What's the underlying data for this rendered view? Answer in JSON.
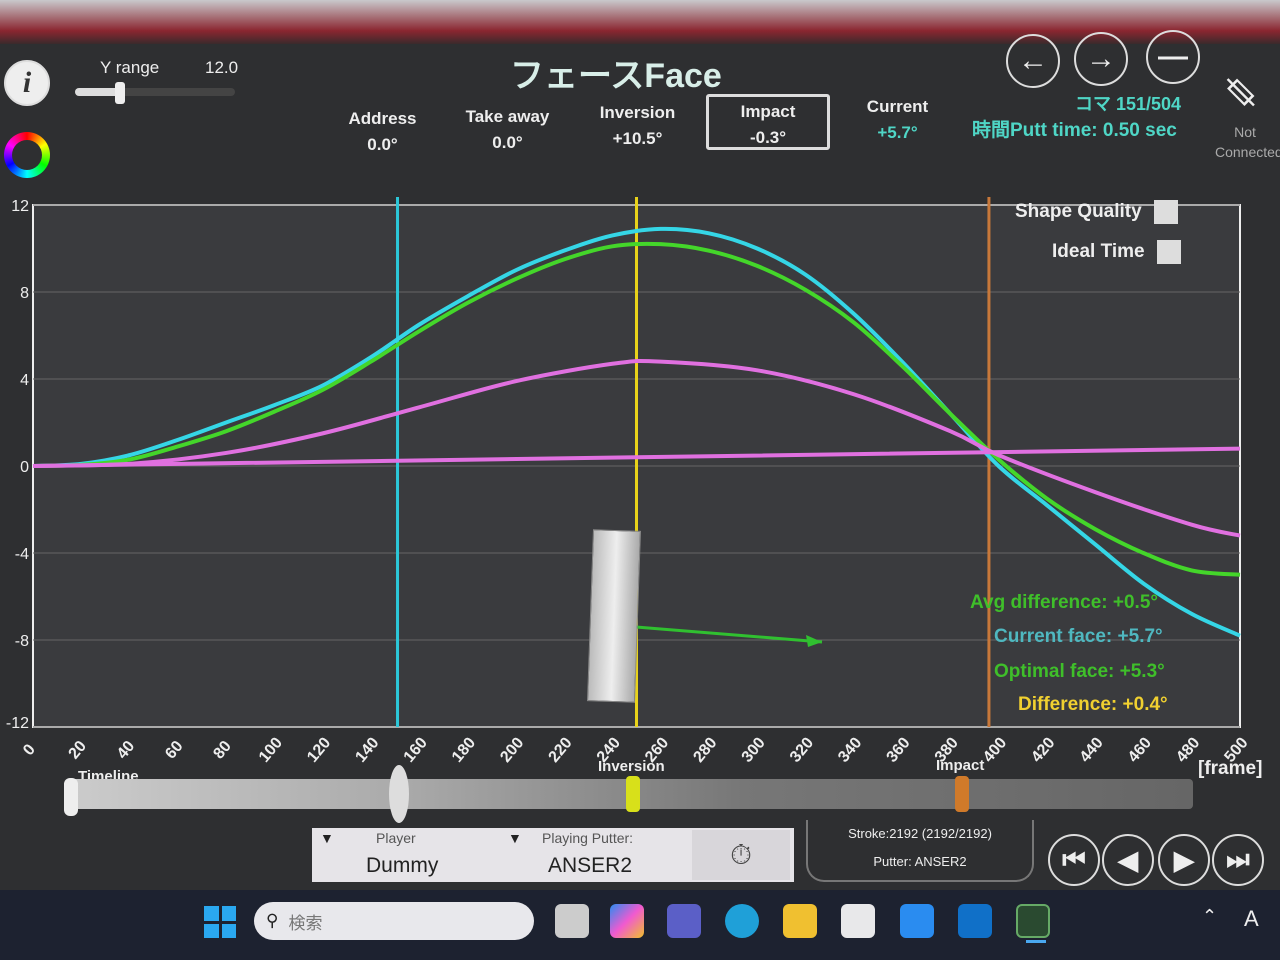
{
  "header": {
    "title": "フェースFace",
    "y_range_label": "Y range",
    "y_range_value": "12.0",
    "y_range_fraction": 0.5,
    "stats": [
      {
        "label": "Address",
        "value": "0.0°"
      },
      {
        "label": "Take away",
        "value": "0.0°"
      },
      {
        "label": "Inversion",
        "value": "+10.5°"
      },
      {
        "label": "Impact",
        "value": "-0.3°"
      },
      {
        "label": "Current",
        "value": "+5.7°"
      }
    ],
    "frame": "コマ 151/504",
    "putt_time": "時間Putt time: 0.50 sec",
    "connection": "Not Connected"
  },
  "toggles": {
    "shape_quality": "Shape Quality",
    "ideal_time": "Ideal Time"
  },
  "annotations": {
    "avg": "Avg difference: +0.5°",
    "current": "Current face: +5.7°",
    "optimal": "Optimal face: +5.3°",
    "difference": "Difference: +0.4°"
  },
  "timeline": {
    "label": "Timeline",
    "inversion": "Inversion",
    "impact": "Impact",
    "current_frame": 151,
    "inversion_frame": 250,
    "impact_frame": 396,
    "total": 504
  },
  "bottom": {
    "player_label": "Player",
    "player": "Dummy",
    "putter_label": "Playing Putter:",
    "putter": "ANSER2",
    "stroke": "Stroke:2192 (2192/2192)",
    "putter_info": "Putter: ANSER2"
  },
  "taskbar": {
    "search_placeholder": "検索",
    "lang": "A"
  },
  "colors": {
    "current": "#35d6e6",
    "optimal": "#44d62a",
    "third": "#e070e0",
    "inversion": "#e8d21a",
    "impact": "#c8783a",
    "address": "#2cc7d8"
  },
  "chart_data": {
    "type": "line",
    "xlabel": "[frame]",
    "xlim": [
      0,
      500
    ],
    "ylim": [
      -12,
      12
    ],
    "yticks": [
      12,
      8,
      4,
      0,
      -4,
      -8,
      -12
    ],
    "xticks": [
      0,
      20,
      40,
      60,
      80,
      100,
      120,
      140,
      160,
      180,
      200,
      220,
      240,
      260,
      280,
      300,
      320,
      340,
      360,
      380,
      400,
      420,
      440,
      460,
      480,
      500
    ],
    "vlines": [
      {
        "x": 151,
        "color": "#2cc7d8"
      },
      {
        "x": 250,
        "color": "#e8d21a"
      },
      {
        "x": 396,
        "color": "#c8783a"
      }
    ],
    "series": [
      {
        "color": "#35d6e6",
        "x": [
          0,
          20,
          40,
          60,
          80,
          100,
          120,
          140,
          160,
          180,
          200,
          220,
          240,
          260,
          280,
          300,
          320,
          340,
          360,
          380,
          400,
          420,
          440,
          460,
          480,
          500
        ],
        "y": [
          0,
          0.1,
          0.5,
          1.2,
          2.0,
          2.8,
          3.7,
          5.0,
          6.5,
          7.8,
          9.0,
          9.9,
          10.6,
          10.9,
          10.7,
          10.0,
          8.8,
          7.0,
          4.8,
          2.4,
          0,
          -1.8,
          -3.6,
          -5.4,
          -6.8,
          -7.8
        ]
      },
      {
        "color": "#44d62a",
        "x": [
          0,
          20,
          40,
          60,
          80,
          100,
          120,
          140,
          160,
          180,
          200,
          220,
          240,
          260,
          280,
          300,
          320,
          340,
          360,
          380,
          400,
          420,
          440,
          460,
          480,
          500
        ],
        "y": [
          0,
          0.05,
          0.3,
          0.9,
          1.6,
          2.5,
          3.5,
          4.8,
          6.2,
          7.5,
          8.6,
          9.5,
          10.1,
          10.2,
          9.9,
          9.2,
          8.1,
          6.6,
          4.6,
          2.4,
          0.3,
          -1.5,
          -2.9,
          -4.0,
          -4.8,
          -5.0
        ]
      },
      {
        "color": "#e070e0",
        "x": [
          0,
          40,
          80,
          120,
          160,
          200,
          240,
          260,
          300,
          340,
          380,
          400,
          440,
          480,
          500
        ],
        "y": [
          0,
          0.1,
          0.6,
          1.5,
          2.7,
          3.9,
          4.7,
          4.8,
          4.4,
          3.3,
          1.6,
          0.5,
          -1.2,
          -2.7,
          -3.2
        ]
      },
      {
        "color": "#e070e0",
        "x": [
          0,
          500
        ],
        "y": [
          0,
          0.8
        ]
      }
    ]
  }
}
